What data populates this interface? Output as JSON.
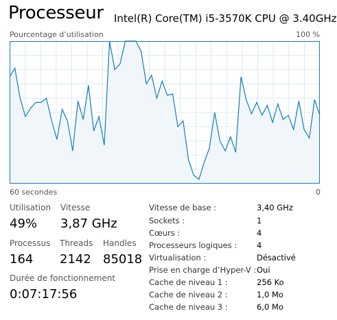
{
  "header": {
    "title": "Processeur",
    "cpu_name": "Intel(R) Core(TM) i5-3570K CPU @ 3.40GHz"
  },
  "graph": {
    "util_label": "Pourcentage d’utilisation",
    "max_label": "100 %",
    "time_left": "60 secondes",
    "time_right": "0",
    "colors": {
      "line": "#117dbb",
      "fill": "#f1f6fa",
      "grid": "#d9eaf4",
      "border": "#117dbb"
    },
    "samples": [
      75,
      81,
      60,
      47,
      53,
      57,
      57,
      60,
      44,
      31,
      52,
      44,
      23,
      58,
      45,
      69,
      37,
      47,
      27,
      100,
      80,
      84,
      100,
      100,
      100,
      93,
      70,
      76,
      60,
      72,
      62,
      63,
      40,
      44,
      17,
      6,
      3,
      15,
      25,
      50,
      30,
      23,
      33,
      22,
      75,
      59,
      49,
      57,
      48,
      55,
      43,
      56,
      45,
      48,
      38,
      58,
      38,
      32,
      59,
      48
    ]
  },
  "stats": {
    "utilization": {
      "label": "Utilisation",
      "value": "49%"
    },
    "speed": {
      "label": "Vitesse",
      "value": "3,87 GHz"
    },
    "processes": {
      "label": "Processus",
      "value": "164"
    },
    "threads": {
      "label": "Threads",
      "value": "2142"
    },
    "handles": {
      "label": "Handles",
      "value": "85018"
    },
    "uptime": {
      "label": "Durée de fonctionnement",
      "value": "0:07:17:56"
    }
  },
  "specs": [
    {
      "label": "Vitesse de base :",
      "value": "3,40 GHz"
    },
    {
      "label": "Sockets :",
      "value": "1"
    },
    {
      "label": "Cœurs :",
      "value": "4"
    },
    {
      "label": "Processeurs logiques :",
      "value": "4"
    },
    {
      "label": "Virtualisation :",
      "value": "Désactivé"
    },
    {
      "label": "Prise en charge d’Hyper-V :",
      "value": "Oui"
    },
    {
      "label": "Cache de niveau 1 :",
      "value": "256 Ko"
    },
    {
      "label": "Cache de niveau 2 :",
      "value": "1,0 Mo"
    },
    {
      "label": "Cache de niveau 3 :",
      "value": "6,0 Mo"
    }
  ]
}
